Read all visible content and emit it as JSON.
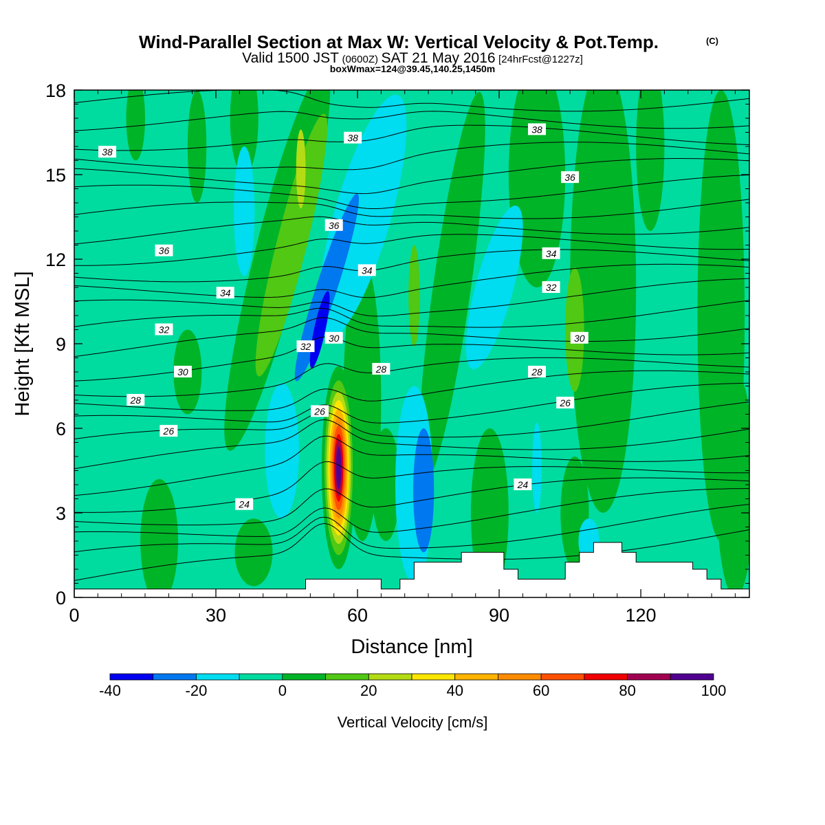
{
  "title": {
    "main": "Wind-Parallel Section at Max W: Vertical Velocity & Pot.Temp.",
    "copyright": "(C)",
    "valid_prefix": "Valid 1500 JST",
    "valid_utc": "(0600Z)",
    "valid_date": "SAT 21 May 2016",
    "forecast": "[24hrFcst@1227z]",
    "box": "boxWmax=124@39.45,140.25,1450m"
  },
  "chart_data": {
    "type": "heatmap",
    "xlabel": "Distance [nm]",
    "ylabel": "Height [Kft MSL]",
    "xlim": [
      0,
      143
    ],
    "ylim": [
      0,
      18
    ],
    "xticks": [
      0,
      30,
      60,
      90,
      120
    ],
    "xtick_labels": [
      "0",
      "30",
      "60",
      "90",
      "120"
    ],
    "yticks": [
      0,
      3,
      6,
      9,
      12,
      15,
      18
    ],
    "ytick_labels": [
      "0",
      "3",
      "6",
      "9",
      "12",
      "15",
      "18"
    ],
    "background_value_range": [
      -10,
      0
    ],
    "colorbar": {
      "label": "Vertical Velocity [cm/s]",
      "bins": [
        -40,
        -30,
        -20,
        -10,
        0,
        10,
        20,
        30,
        40,
        50,
        60,
        70,
        80,
        90,
        100
      ],
      "colors": [
        "#0000f0",
        "#0078f0",
        "#00dcf0",
        "#00dca0",
        "#00b428",
        "#50c814",
        "#b4dc14",
        "#ffe600",
        "#ffb400",
        "#ff8c00",
        "#ff5000",
        "#f00000",
        "#a00050",
        "#500090"
      ],
      "tick_values": [
        -40,
        -20,
        0,
        20,
        40,
        60,
        80,
        100
      ],
      "tick_labels": [
        "-40",
        "-20",
        "0",
        "20",
        "40",
        "60",
        "80",
        "100"
      ]
    },
    "vertical_velocity_features": [
      {
        "kind": "updraft",
        "x_center": 55,
        "y_bottom": 1,
        "y_top": 8,
        "peak": 100
      },
      {
        "kind": "updraft",
        "x_center": 47,
        "y_bottom": 8,
        "y_top": 18,
        "peak": 25
      },
      {
        "kind": "downdraft",
        "x_center": 52,
        "y_bottom": 7.7,
        "y_top": 14.3,
        "peak": -40
      },
      {
        "kind": "downdraft",
        "x_center": 73,
        "y_bottom": 1.5,
        "y_top": 6,
        "peak": -30
      },
      {
        "kind": "downdraft",
        "x_center": 60,
        "y_bottom": 9,
        "y_top": 17.5,
        "peak": -15
      },
      {
        "kind": "updraft",
        "x_center": 106,
        "y_bottom": 7.5,
        "y_top": 11.5,
        "peak": 20
      }
    ],
    "terrain": {
      "x": [
        0,
        49,
        49,
        65,
        65,
        69,
        69,
        72,
        72,
        82,
        82,
        91,
        91,
        94,
        94,
        104,
        104,
        107,
        107,
        110,
        110,
        116,
        116,
        119,
        119,
        131,
        131,
        134,
        134,
        137,
        137,
        143
      ],
      "height": [
        0.3,
        0.3,
        0.65,
        0.65,
        0.3,
        0.3,
        0.65,
        0.65,
        1.25,
        1.25,
        1.6,
        1.6,
        1.0,
        1.0,
        0.65,
        0.65,
        1.25,
        1.25,
        1.6,
        1.6,
        1.95,
        1.95,
        1.6,
        1.6,
        1.25,
        1.25,
        1.0,
        1.0,
        0.65,
        0.65,
        0.3,
        0.3
      ]
    },
    "theta_contours": [
      {
        "value": 24,
        "label_x": 36,
        "label_y": 3.3
      },
      {
        "value": 24,
        "label_x": 95,
        "label_y": 4.0
      },
      {
        "value": 26,
        "label_x": 20,
        "label_y": 5.9
      },
      {
        "value": 26,
        "label_x": 52,
        "label_y": 6.6
      },
      {
        "value": 26,
        "label_x": 104,
        "label_y": 6.9
      },
      {
        "value": 28,
        "label_x": 13,
        "label_y": 7.0
      },
      {
        "value": 28,
        "label_x": 65,
        "label_y": 8.1
      },
      {
        "value": 28,
        "label_x": 98,
        "label_y": 8.0
      },
      {
        "value": 30,
        "label_x": 23,
        "label_y": 8.0
      },
      {
        "value": 30,
        "label_x": 55,
        "label_y": 9.2
      },
      {
        "value": 30,
        "label_x": 107,
        "label_y": 9.2
      },
      {
        "value": 32,
        "label_x": 19,
        "label_y": 9.5
      },
      {
        "value": 32,
        "label_x": 49,
        "label_y": 8.9
      },
      {
        "value": 32,
        "label_x": 101,
        "label_y": 11.0
      },
      {
        "value": 34,
        "label_x": 32,
        "label_y": 10.8
      },
      {
        "value": 34,
        "label_x": 62,
        "label_y": 11.6
      },
      {
        "value": 34,
        "label_x": 101,
        "label_y": 12.2
      },
      {
        "value": 36,
        "label_x": 19,
        "label_y": 12.3
      },
      {
        "value": 36,
        "label_x": 55,
        "label_y": 13.2
      },
      {
        "value": 36,
        "label_x": 105,
        "label_y": 14.9
      },
      {
        "value": 38,
        "label_x": 7,
        "label_y": 15.8
      },
      {
        "value": 38,
        "label_x": 59,
        "label_y": 16.3
      },
      {
        "value": 38,
        "label_x": 98,
        "label_y": 16.6
      }
    ]
  }
}
